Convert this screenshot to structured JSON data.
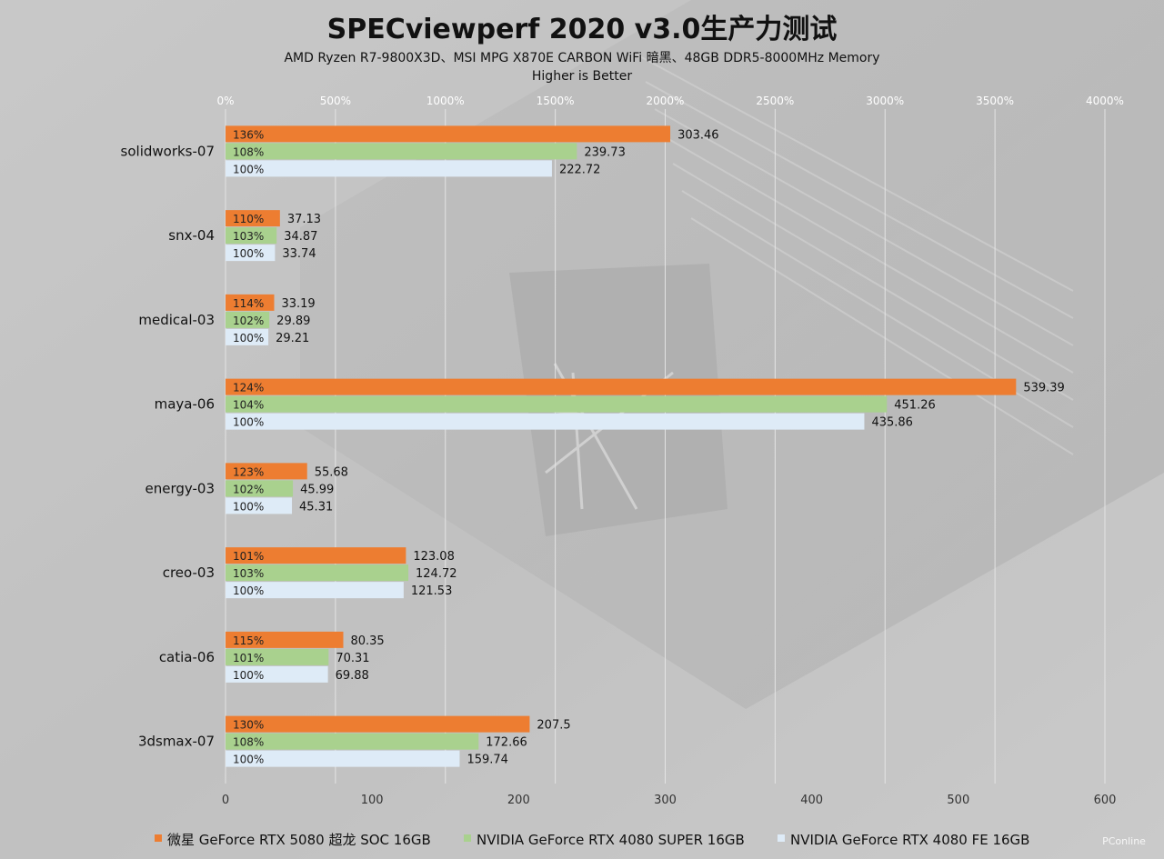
{
  "chart_data": {
    "type": "bar",
    "orientation": "horizontal",
    "title": "SPECviewperf 2020 v3.0生产力测试",
    "subtitle": "AMD Ryzen R7-9800X3D、MSI MPG X870E CARBON WiFi 暗黑、48GB DDR5-8000MHz Memory",
    "note": "Higher is Better",
    "categories": [
      "solidworks-07",
      "snx-04",
      "medical-03",
      "maya-06",
      "energy-03",
      "creo-03",
      "catia-06",
      "3dsmax-07"
    ],
    "series": [
      {
        "name": "微星 GeForce RTX 5080 超龙 SOC 16GB",
        "color": "#ed7d31",
        "values": [
          303.46,
          37.13,
          33.19,
          539.39,
          55.68,
          123.08,
          80.35,
          207.5
        ],
        "value_labels": [
          "303.46",
          "37.13",
          "33.19",
          "539.39",
          "55.68",
          "123.08",
          "80.35",
          "207.5"
        ],
        "percent_labels": [
          "136%",
          "110%",
          "114%",
          "124%",
          "123%",
          "101%",
          "115%",
          "130%"
        ]
      },
      {
        "name": "NVIDIA GeForce RTX 4080 SUPER 16GB",
        "color": "#a9d18e",
        "values": [
          239.73,
          34.87,
          29.89,
          451.26,
          45.99,
          124.72,
          70.31,
          172.66
        ],
        "value_labels": [
          "239.73",
          "34.87",
          "29.89",
          "451.26",
          "45.99",
          "124.72",
          "70.31",
          "172.66"
        ],
        "percent_labels": [
          "108%",
          "103%",
          "102%",
          "104%",
          "102%",
          "103%",
          "101%",
          "108%"
        ]
      },
      {
        "name": "NVIDIA GeForce RTX 4080 FE 16GB",
        "color": "#deebf7",
        "values": [
          222.72,
          33.74,
          29.21,
          435.86,
          45.31,
          121.53,
          69.88,
          159.74
        ],
        "value_labels": [
          "222.72",
          "33.74",
          "29.21",
          "435.86",
          "45.31",
          "121.53",
          "69.88",
          "159.74"
        ],
        "percent_labels": [
          "100%",
          "100%",
          "100%",
          "100%",
          "100%",
          "100%",
          "100%",
          "100%"
        ]
      }
    ],
    "x_axis": {
      "range": [
        0,
        600
      ],
      "ticks": [
        "0",
        "100",
        "200",
        "300",
        "400",
        "500",
        "600"
      ]
    },
    "secondary_axis": {
      "range": [
        0,
        4000
      ],
      "ticks": [
        "0%",
        "500%",
        "1000%",
        "1500%",
        "2000%",
        "2500%",
        "3000%",
        "3500%",
        "4000%"
      ]
    },
    "grid": true,
    "legend_position": "bottom"
  },
  "watermark": "PConline"
}
